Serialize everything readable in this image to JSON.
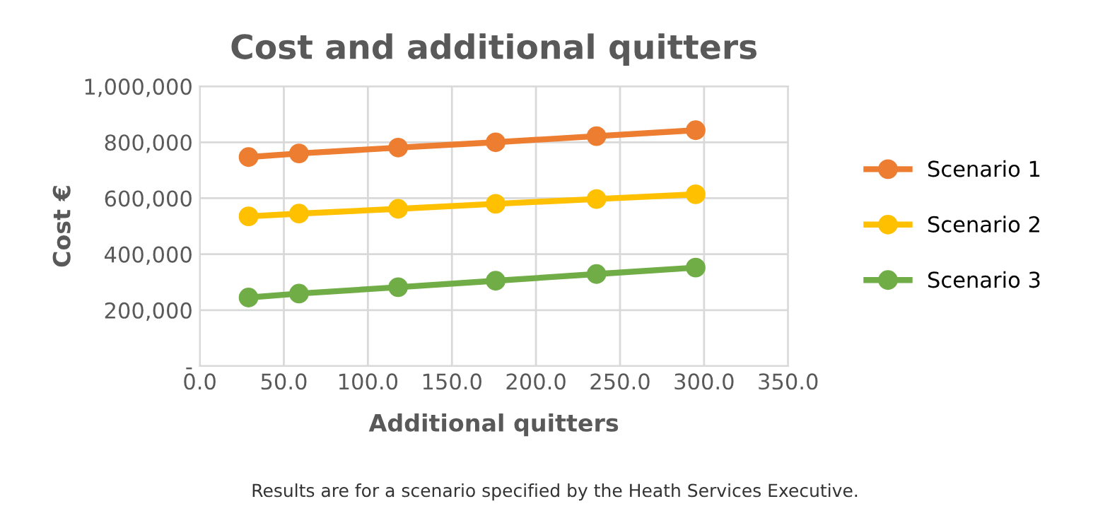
{
  "chart_data": {
    "type": "line",
    "title": "Cost and additional quitters",
    "xlabel": "Additional quitters",
    "ylabel": "Cost €",
    "x": [
      29,
      59,
      118,
      176,
      236,
      295
    ],
    "series": [
      {
        "name": "Scenario 1",
        "color": "#ed7d31",
        "values": [
          747000,
          760000,
          781000,
          800000,
          822000,
          843000
        ]
      },
      {
        "name": "Scenario 2",
        "color": "#ffc000",
        "values": [
          535000,
          545000,
          562000,
          580000,
          597000,
          614000
        ]
      },
      {
        "name": "Scenario 3",
        "color": "#70ad47",
        "values": [
          245000,
          259000,
          282000,
          305000,
          329000,
          352000
        ]
      }
    ],
    "xlim": [
      0,
      350
    ],
    "xticks": [
      {
        "value": 0,
        "label": "0.0"
      },
      {
        "value": 50,
        "label": "50.0"
      },
      {
        "value": 100,
        "label": "100.0"
      },
      {
        "value": 150,
        "label": "150.0"
      },
      {
        "value": 200,
        "label": "200.0"
      },
      {
        "value": 250,
        "label": "250.0"
      },
      {
        "value": 300,
        "label": "300.0"
      },
      {
        "value": 350,
        "label": "350.0"
      }
    ],
    "ylim": [
      0,
      1000000
    ],
    "yticks": [
      {
        "value": 0,
        "label": "-"
      },
      {
        "value": 200000,
        "label": "200,000"
      },
      {
        "value": 400000,
        "label": "400,000"
      },
      {
        "value": 600000,
        "label": "600,000"
      },
      {
        "value": 800000,
        "label": "800,000"
      },
      {
        "value": 1000000,
        "label": "1,000,000"
      }
    ],
    "grid": true,
    "legend": "right",
    "marker": "circle",
    "line_style": "solid",
    "annotations": [
      "Results are for a scenario specified by the Heath Services Executive."
    ]
  }
}
